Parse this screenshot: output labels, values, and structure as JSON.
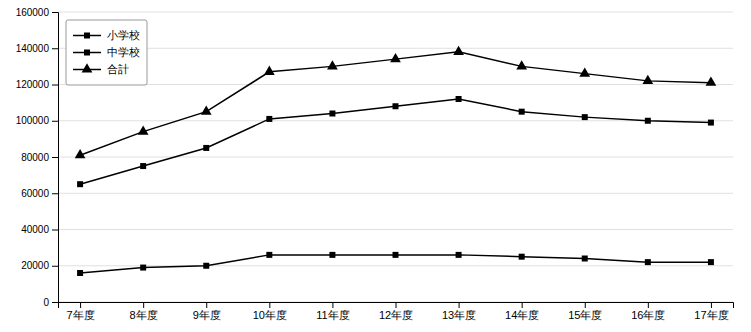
{
  "chart_data": {
    "type": "line",
    "categories": [
      "7年度",
      "8年度",
      "9年度",
      "10年度",
      "11年度",
      "12年度",
      "13年度",
      "14年度",
      "15年度",
      "16年度",
      "17年度"
    ],
    "series": [
      {
        "name": "小学校",
        "color": "#000000",
        "marker": "square",
        "values": [
          16000,
          19000,
          20000,
          26000,
          26000,
          26000,
          26000,
          25000,
          24000,
          22000,
          22000
        ]
      },
      {
        "name": "中学校",
        "color": "#000000",
        "marker": "square",
        "values": [
          65000,
          75000,
          85000,
          101000,
          104000,
          108000,
          112000,
          105000,
          102000,
          100000,
          99000
        ]
      },
      {
        "name": "合計",
        "color": "#000000",
        "marker": "triangle",
        "values": [
          81000,
          94000,
          105000,
          127000,
          130000,
          134000,
          138000,
          130000,
          126000,
          122000,
          121000
        ]
      }
    ],
    "ylim": [
      0,
      160000
    ],
    "yticks": [
      0,
      20000,
      40000,
      60000,
      80000,
      100000,
      120000,
      140000,
      160000
    ],
    "grid": true,
    "legend": "upper left"
  }
}
